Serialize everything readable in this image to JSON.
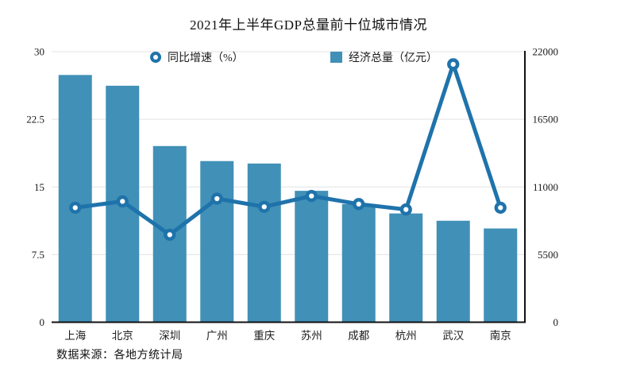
{
  "title": "2021年上半年GDP总量前十位城市情况",
  "source_note": "数据来源：各地方统计局",
  "legend": {
    "items": [
      {
        "label": "同比增速（%）",
        "series": "line",
        "icon": "ring-marker-icon"
      },
      {
        "label": "经济总量（亿元）",
        "series": "bar",
        "icon": "square-marker-icon"
      }
    ]
  },
  "colors": {
    "bar": "#4190b7",
    "line": "#1f73ab",
    "grid": "#e3e3e3",
    "axis": "#111111",
    "text": "#1a1a1a"
  },
  "chart_data": {
    "type": "bar",
    "combo": "bar+line",
    "title": "2021年上半年GDP总量前十位城市情况",
    "categories": [
      "上海",
      "北京",
      "深圳",
      "广州",
      "重庆",
      "苏州",
      "成都",
      "杭州",
      "武汉",
      "南京"
    ],
    "series": [
      {
        "name": "经济总量（亿元）",
        "type": "bar",
        "axis": "right",
        "values": [
          20102,
          19228,
          14324,
          13102,
          12903,
          10685,
          9603,
          8844,
          8251,
          7623
        ]
      },
      {
        "name": "同比增速（%）",
        "type": "line",
        "axis": "left",
        "values": [
          12.7,
          13.4,
          9.7,
          13.7,
          12.8,
          14.0,
          13.1,
          12.5,
          28.6,
          12.7
        ]
      }
    ],
    "left_axis": {
      "min": 0,
      "max": 30,
      "tick_labels": [
        "0",
        "7.5",
        "15",
        "22.5",
        "30"
      ]
    },
    "right_axis": {
      "min": 0,
      "max": 22000,
      "tick_labels": [
        "0",
        "5500",
        "11000",
        "16500",
        "22000"
      ]
    },
    "grid": true,
    "legend_position": "top-inside",
    "source": "数据来源：各地方统计局"
  }
}
